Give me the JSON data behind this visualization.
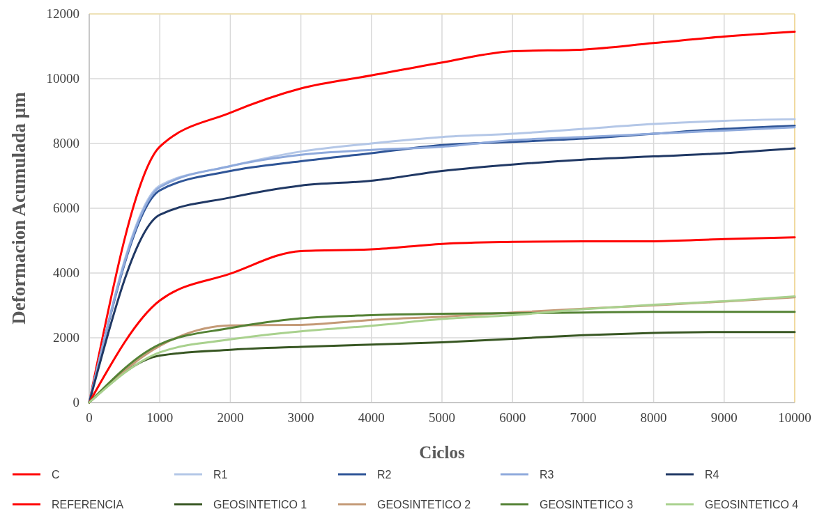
{
  "chart_data": {
    "type": "line",
    "xlabel": "Ciclos",
    "ylabel": "Deformacion Acumulada µm",
    "x": [
      0,
      1000,
      2000,
      3000,
      4000,
      5000,
      6000,
      7000,
      8000,
      9000,
      10000
    ],
    "xlim": [
      0,
      10000
    ],
    "xticks": [
      0,
      1000,
      2000,
      3000,
      4000,
      5000,
      6000,
      7000,
      8000,
      9000,
      10000
    ],
    "ylim": [
      0,
      12000
    ],
    "yticks": [
      0,
      2000,
      4000,
      6000,
      8000,
      10000,
      12000
    ],
    "grid": true,
    "legend": "bottom",
    "marker": "none",
    "line_style": "solid",
    "series": [
      {
        "name": "C",
        "color": "#ff0000",
        "values": [
          0,
          7900,
          8950,
          9700,
          10100,
          10500,
          10850,
          10900,
          11100,
          11300,
          11450
        ]
      },
      {
        "name": "R1",
        "color": "#b4c7e7",
        "values": [
          0,
          6700,
          7300,
          7750,
          8000,
          8200,
          8300,
          8450,
          8600,
          8700,
          8750
        ]
      },
      {
        "name": "R2",
        "color": "#2f5597",
        "values": [
          0,
          6550,
          7150,
          7450,
          7700,
          7950,
          8050,
          8150,
          8300,
          8450,
          8550
        ]
      },
      {
        "name": "R3",
        "color": "#8faadc",
        "values": [
          0,
          6650,
          7300,
          7650,
          7800,
          7900,
          8100,
          8200,
          8300,
          8400,
          8500
        ]
      },
      {
        "name": "R4",
        "color": "#203864",
        "values": [
          0,
          5800,
          6330,
          6700,
          6850,
          7150,
          7350,
          7500,
          7600,
          7700,
          7850
        ]
      },
      {
        "name": "REFERENCIA",
        "color": "#ff0000",
        "values": [
          0,
          3150,
          3980,
          4680,
          4730,
          4900,
          4960,
          4980,
          4980,
          5050,
          5100
        ]
      },
      {
        "name": "GEOSINTETICO 1",
        "color": "#385723",
        "values": [
          0,
          1450,
          1630,
          1720,
          1790,
          1860,
          1970,
          2080,
          2150,
          2180,
          2180
        ]
      },
      {
        "name": "GEOSINTETICO 2",
        "color": "#c49a77",
        "values": [
          0,
          1750,
          2380,
          2400,
          2550,
          2650,
          2780,
          2900,
          3000,
          3120,
          3250
        ]
      },
      {
        "name": "GEOSINTETICO 3",
        "color": "#548235",
        "values": [
          0,
          1800,
          2300,
          2600,
          2700,
          2740,
          2760,
          2780,
          2800,
          2800,
          2800
        ]
      },
      {
        "name": "GEOSINTETICO 4",
        "color": "#a9d18e",
        "values": [
          0,
          1550,
          1950,
          2200,
          2370,
          2580,
          2700,
          2880,
          3020,
          3130,
          3280
        ]
      }
    ]
  }
}
